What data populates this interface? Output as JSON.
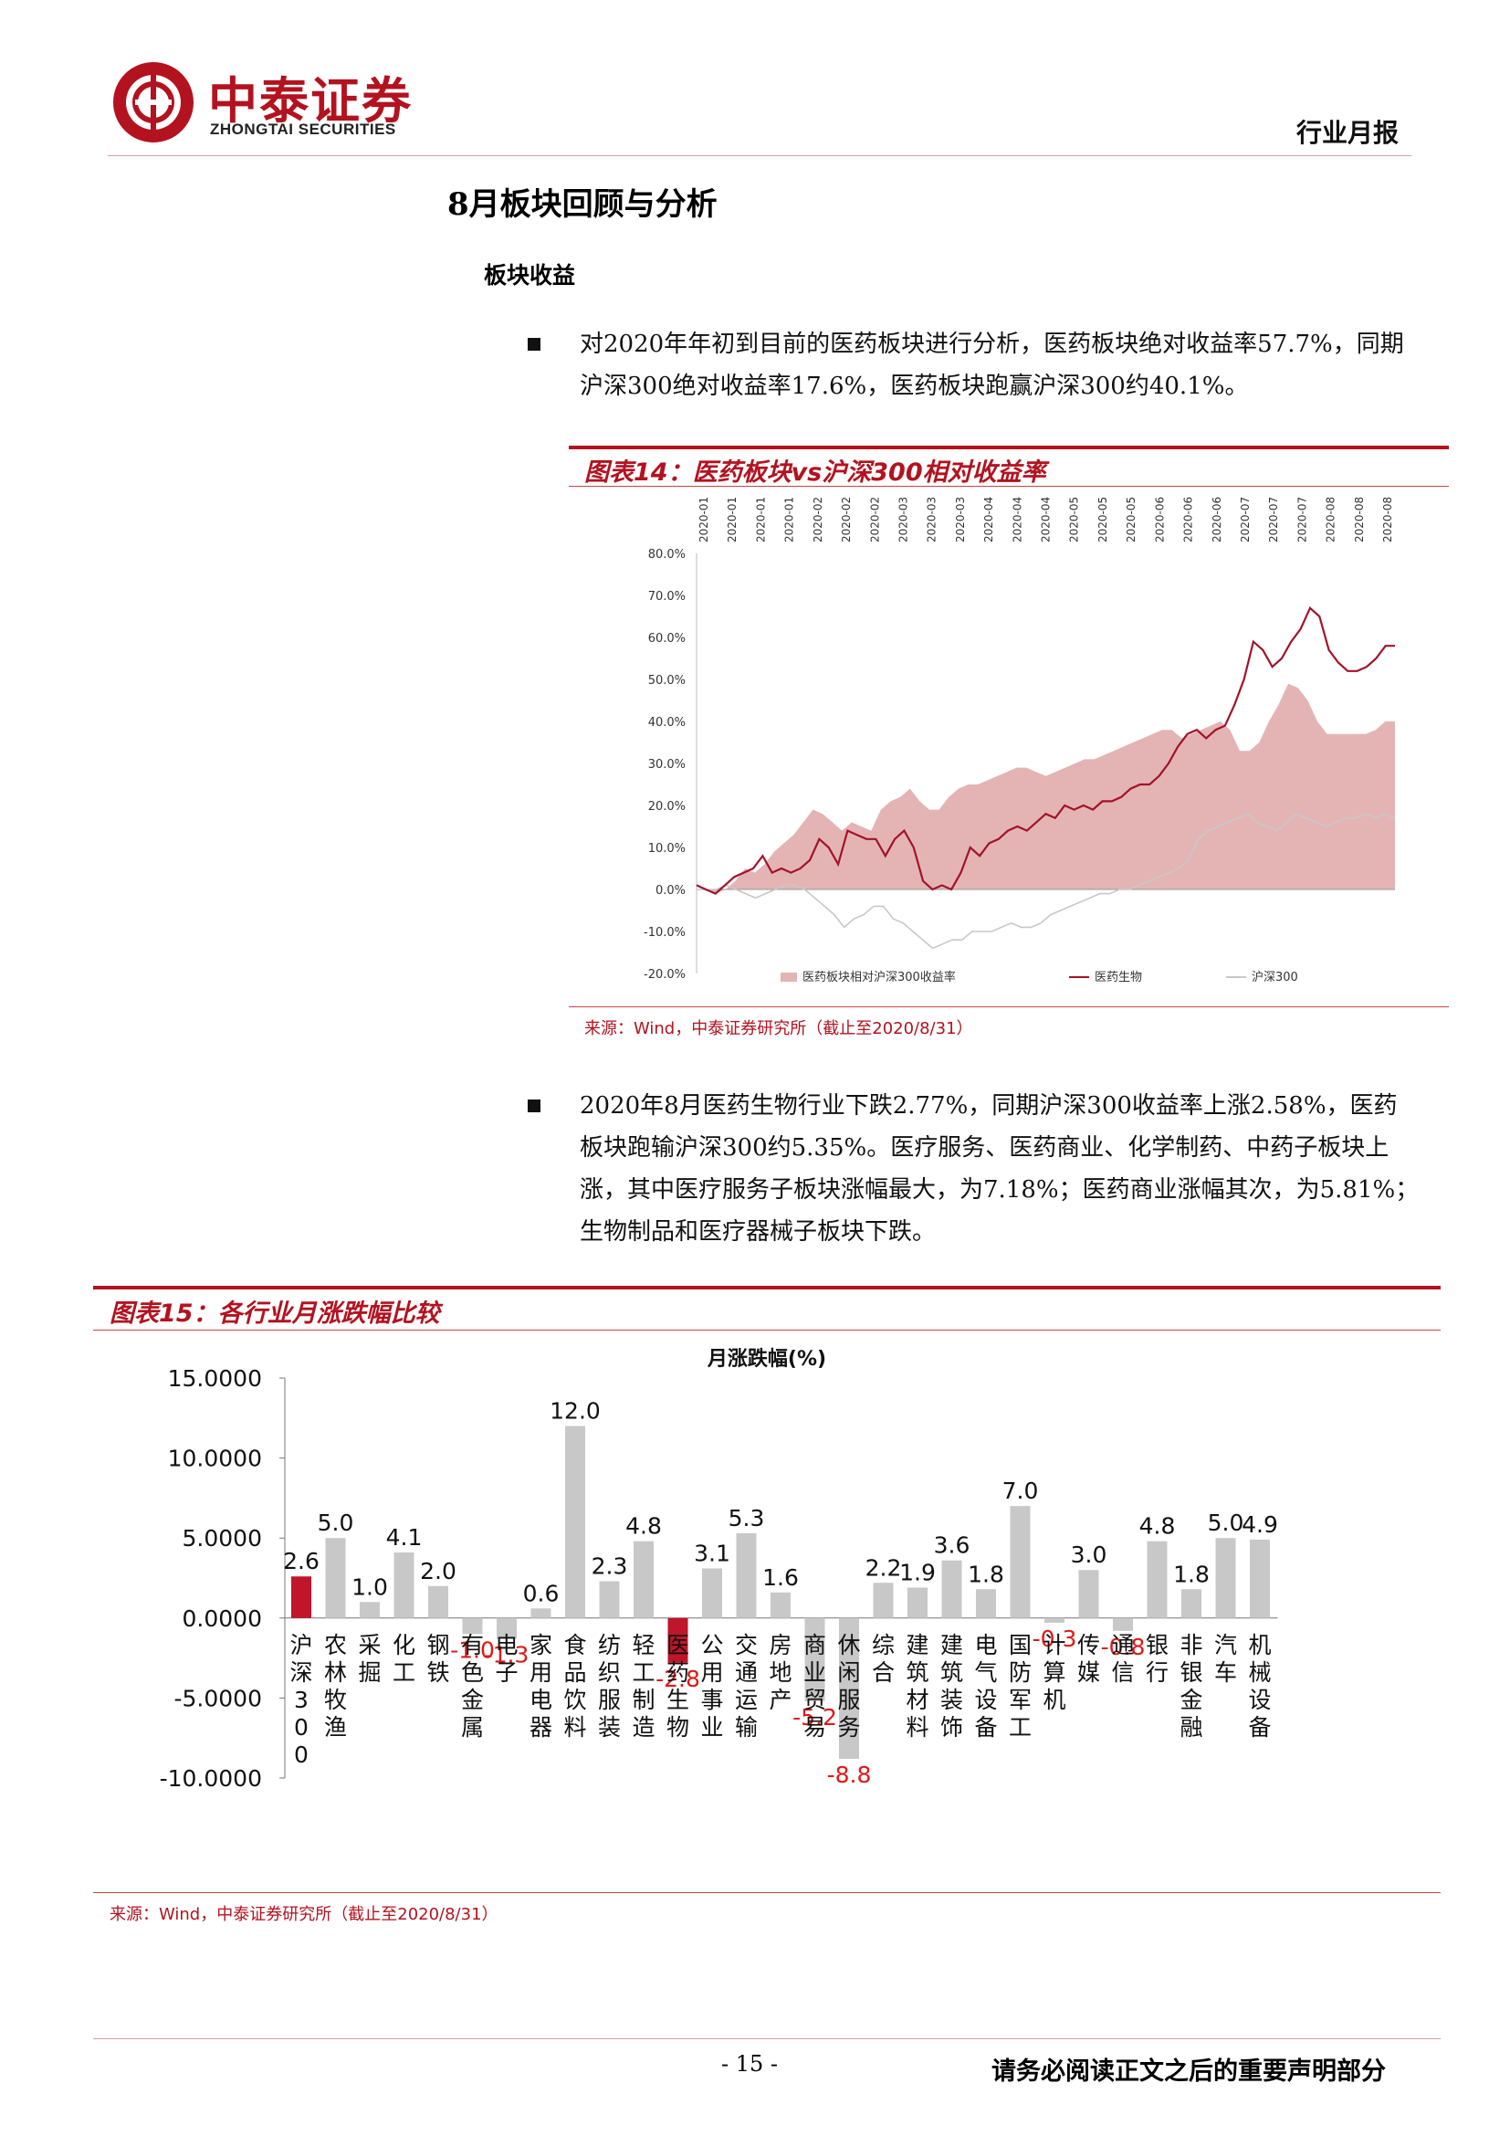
{
  "header": {
    "logo_cn": "中泰证券",
    "logo_en": "ZHONGTAI SECURITIES",
    "report_type": "行业月报"
  },
  "section_title": "8月板块回顾与分析",
  "sub_title": "板块收益",
  "para1": "对2020年年初到目前的医药板块进行分析，医药板块绝对收益率57.7%，同期沪深300绝对收益率17.6%，医药板块跑赢沪深300约40.1%。",
  "para2": "2020年8月医药生物行业下跌2.77%，同期沪深300收益率上涨2.58%，医药板块跑输沪深300约5.35%。医疗服务、医药商业、化学制药、中药子板块上涨，其中医疗服务子板块涨幅最大，为7.18%；医药商业涨幅其次，为5.81%；生物制品和医疗器械子板块下跌。",
  "fig14": {
    "title": "图表14：医药板块vs沪深300相对收益率",
    "source": "来源：Wind，中泰证券研究所（截止至2020/8/31）"
  },
  "fig15": {
    "title": "图表15：各行业月涨跌幅比较",
    "source": "来源：Wind，中泰证券研究所（截止至2020/8/31）"
  },
  "footer": {
    "page_number": "- 15 -",
    "disclaimer": "请务必阅读正文之后的重要声明部分"
  },
  "colors": {
    "brand_red": "#b3121f",
    "pharma_line": "#a3122a",
    "area_fill": "#e4b4b4",
    "hs300_line": "#c8c8c8",
    "bar_gray": "#c8c8c8",
    "bar_highlight": "#c0152a"
  },
  "chart_data": [
    {
      "type": "area",
      "title": "",
      "x_tick_labels": [
        "2020-01",
        "2020-01",
        "2020-01",
        "2020-01",
        "2020-02",
        "2020-02",
        "2020-02",
        "2020-03",
        "2020-03",
        "2020-03",
        "2020-04",
        "2020-04",
        "2020-04",
        "2020-05",
        "2020-05",
        "2020-05",
        "2020-06",
        "2020-06",
        "2020-06",
        "2020-07",
        "2020-07",
        "2020-07",
        "2020-08",
        "2020-08",
        "2020-08"
      ],
      "y_ticks": [
        "80.0%",
        "70.0%",
        "60.0%",
        "50.0%",
        "40.0%",
        "30.0%",
        "20.0%",
        "10.0%",
        "0.0%",
        "-10.0%",
        "-20.0%"
      ],
      "ylim": [
        -20,
        80
      ],
      "legend_position": "bottom",
      "series": [
        {
          "name": "医药板块相对沪深300收益率",
          "type": "area",
          "values": [
            0,
            0,
            -1,
            0,
            2,
            5,
            4,
            6,
            9,
            11,
            13,
            16,
            19,
            18,
            16,
            14,
            16,
            15,
            14,
            19,
            21,
            22,
            24,
            21,
            19,
            19,
            22,
            24,
            25,
            25,
            26,
            27,
            28,
            29,
            29,
            28,
            27,
            28,
            29,
            30,
            31,
            31,
            32,
            33,
            34,
            35,
            36,
            37,
            38,
            38,
            36,
            37,
            38,
            39,
            40,
            38,
            33,
            33,
            35,
            40,
            44,
            49,
            48,
            45,
            40,
            37,
            37,
            37,
            37,
            37,
            38,
            40,
            40
          ]
        },
        {
          "name": "医药生物",
          "type": "line",
          "values": [
            1,
            0,
            -1,
            1,
            3,
            4,
            5,
            8,
            4,
            5,
            4,
            5,
            7,
            12,
            10,
            6,
            14,
            13,
            12,
            12,
            8,
            12,
            14,
            10,
            2,
            0,
            1,
            0,
            4,
            10,
            8,
            11,
            12,
            14,
            15,
            14,
            16,
            18,
            17,
            20,
            19,
            20,
            19,
            21,
            21,
            22,
            24,
            25,
            25,
            27,
            30,
            34,
            37,
            38,
            36,
            38,
            39,
            44,
            50,
            59,
            57,
            53,
            55,
            59,
            62,
            67,
            65,
            57,
            54,
            52,
            52,
            53,
            55,
            58,
            58
          ]
        },
        {
          "name": "沪深300",
          "type": "line",
          "values": [
            0,
            0,
            0,
            1,
            0,
            -1,
            -2,
            -1,
            0,
            1,
            1,
            0,
            -2,
            -4,
            -6,
            -9,
            -7,
            -6,
            -4,
            -4,
            -7,
            -8,
            -10,
            -12,
            -14,
            -13,
            -12,
            -12,
            -10,
            -10,
            -10,
            -9,
            -8,
            -9,
            -9,
            -8,
            -6,
            -5,
            -4,
            -3,
            -2,
            -1,
            -1,
            0,
            0,
            1,
            2,
            3,
            4,
            5,
            7,
            12,
            14,
            15,
            16,
            17,
            18,
            16,
            15,
            14,
            16,
            18,
            17,
            16,
            15,
            16,
            17,
            17,
            18,
            17,
            18,
            17
          ]
        }
      ]
    },
    {
      "type": "bar",
      "title": "月涨跌幅(%)",
      "categories": [
        "沪深300",
        "农林牧渔",
        "采掘",
        "化工",
        "钢铁",
        "有色金属",
        "电子",
        "家用电器",
        "食品饮料",
        "纺织服装",
        "轻工制造",
        "医药生物",
        "公用事业",
        "交通运输",
        "房地产",
        "商业贸易",
        "休闲服务",
        "综合",
        "建筑材料",
        "建筑装饰",
        "电气设备",
        "国防军工",
        "计算机",
        "传媒",
        "通信",
        "银行",
        "非银金融",
        "汽车",
        "机械设备"
      ],
      "values": [
        2.6,
        5.0,
        1.0,
        4.1,
        2.0,
        -1.0,
        -1.3,
        0.6,
        12.0,
        2.3,
        4.8,
        -2.8,
        3.1,
        5.3,
        1.6,
        -5.2,
        -8.8,
        2.2,
        1.9,
        3.6,
        1.8,
        7.0,
        -0.3,
        3.0,
        -0.8,
        4.8,
        1.8,
        5.0,
        4.9
      ],
      "value_labels": [
        "2.6",
        "5.0",
        "1.0",
        "4.1",
        "2.0",
        "-1.0",
        "-1.3",
        "0.6",
        "12.0",
        "2.3",
        "4.8",
        "-2.8",
        "3.1",
        "5.3",
        "1.6",
        "-5.2",
        "-8.8",
        "2.2",
        "1.9",
        "3.6",
        "1.8",
        "7.0",
        "-0.3",
        "3.0",
        "-0.8",
        "4.8",
        "1.8",
        "5.0",
        "4.9"
      ],
      "highlighted": [
        "沪深300",
        "医药生物"
      ],
      "y_ticks": [
        "15.0000",
        "10.0000",
        "5.0000",
        "0.0000",
        "-5.0000",
        "-10.0000"
      ],
      "ylim": [
        -10,
        15
      ]
    }
  ]
}
